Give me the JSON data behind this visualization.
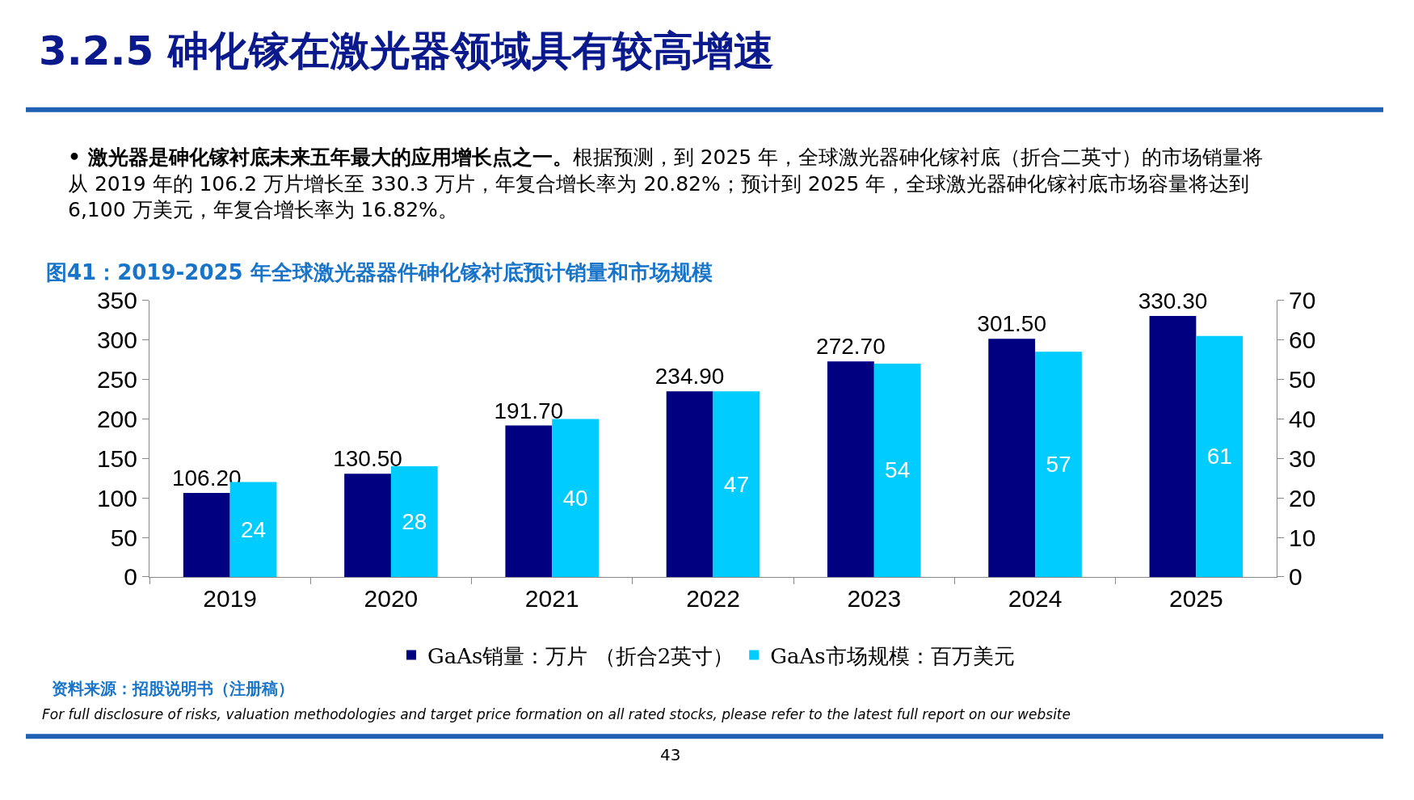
{
  "chart_data": {
    "type": "bar",
    "title": "3.2.5 砷化镓在激光器领域具有较高增速",
    "subtitle": "图41：2019-2025 年全球激光器器件砷化镓衬底预计销量和市场规模",
    "categories": [
      "2019",
      "2020",
      "2021",
      "2022",
      "2023",
      "2024",
      "2025"
    ],
    "series": [
      {
        "name": "GaAs销量：万片 （折合2英寸）",
        "color": "#000080",
        "values": [
          106.2,
          130.5,
          191.7,
          234.9,
          272.7,
          301.5,
          330.3
        ],
        "value_labels": [
          "106.20",
          "130.50",
          "191.70",
          "234.90",
          "272.70",
          "301.50",
          "330.30"
        ]
      },
      {
        "name": "GaAs市场规模：百万美元",
        "color": "#00ccff",
        "axis": "y2",
        "values": [
          24,
          28,
          40,
          47,
          54,
          57,
          61
        ],
        "value_labels": [
          "24",
          "28",
          "40",
          "47",
          "54",
          "57",
          "61"
        ]
      }
    ],
    "ylim": [
      0,
      350
    ],
    "yticks": [
      0,
      50,
      100,
      150,
      200,
      250,
      300,
      350
    ],
    "y2lim": [
      0,
      70
    ],
    "y2ticks": [
      0,
      10,
      20,
      30,
      40,
      50,
      60,
      70
    ],
    "legend": "bottom",
    "annotations": [
      "• 激光器是砷化镓衬底未来五年最大的应用增长点之一。根据预测，到 2025 年，全球激光器砷化镓衬底（折合二英寸）的市场销量将从 2019 年的 106.2 万片增长至 330.3 万片，年复合增长率为 20.82%；预计到 2025 年，全球激光器砷化镓衬底市场容量将达到 6,100 万美元，年复合增长率为 16.82%。",
      "资料来源：招股说明书（注册稿）",
      "For full disclosure of risks, valuation methodologies and target price formation on all rated stocks, please refer to the latest full report on our website",
      "43"
    ]
  }
}
